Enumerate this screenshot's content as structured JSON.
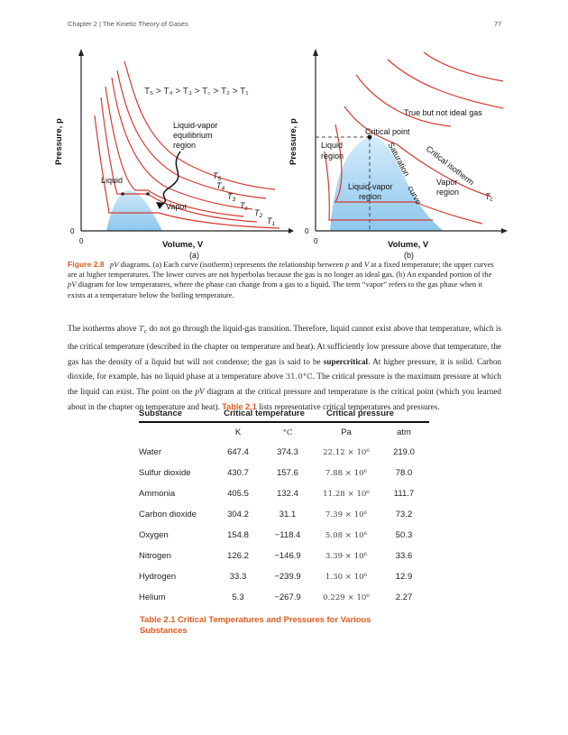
{
  "header": {
    "chapter": "Chapter 2 | The Kinetic Theory of Gases",
    "page": "77"
  },
  "figure": {
    "a": {
      "ordering": "T₅ > T₄ > T₃ > T꜀ > T₂ > T₁",
      "ylabel": "Pressure, p",
      "xlabel": "Volume, V",
      "origin_y": "0",
      "origin_x": "0",
      "region_label": [
        "Liquid-vapor",
        "equilibrium",
        "region"
      ],
      "liquid": "Liquid",
      "vapor": "Vapor",
      "curve_labels": [
        "T5",
        "T4",
        "T3",
        "Tc",
        "T2",
        "T1"
      ],
      "sublabel": "(a)"
    },
    "b": {
      "ylabel": "Pressure, p",
      "xlabel": "Volume, V",
      "origin_y": "0",
      "origin_x": "0",
      "true_not_ideal": "True but not ideal gas",
      "critical_point": "Critical point",
      "liquid_region": [
        "Liquid",
        "region"
      ],
      "saturation_curve": [
        "Saturation",
        "curve"
      ],
      "critical_isotherm": "Critical isotherm",
      "lv_region": [
        "Liquid-vapor",
        "region"
      ],
      "vapor_region": [
        "Vapor",
        "region"
      ],
      "tc": "Tc",
      "sublabel": "(b)"
    }
  },
  "caption": {
    "label": "Figure 2.8",
    "text1": "pV",
    "text2": " diagrams. (a) Each curve (isotherm) represents the relationship between ",
    "p": "p",
    "and": " and ",
    "v": "V",
    "text3": " at a fixed temperature; the upper curves are at higher temperatures. The lower curves are not hyperbolas because the gas is no longer an ideal gas. (b) An expanded portion of the ",
    "pv2": "pV",
    "text4": " diagram for low temperatures, where the phase can change from a gas to a liquid. The term “vapor” refers to the gas phase when it exists at a temperature below the boiling temperature."
  },
  "body": {
    "s1": "The isotherms above ",
    "tc": "T",
    "tc_sub": "c",
    "s2": " do not go through the liquid-gas transition. Therefore, liquid cannot exist above that temperature, which is the critical temperature (described in the chapter on temperature and heat). At sufficiently low pressure above that temperature, the gas has the density of a liquid but will not condense; the gas is said to be ",
    "supercritical": "supercritical",
    "s3": ". At higher pressure, it is solid. Carbon dioxide, for example, has no liquid phase at a temperature above ",
    "temp": "31.0°C",
    "s4": ". The critical pressure is the maximum pressure at which the liquid can exist. The point on the ",
    "pv": "pV",
    "s5": " diagram at the critical pressure and temperature is the critical point (which you learned about in the chapter on temperature and heat). ",
    "table_ref": "Table 2.1",
    "s6": " lists representative critical temperatures and pressures."
  },
  "table": {
    "headers": [
      "Substance",
      "Critical temperature",
      "Critical pressure"
    ],
    "units": [
      "K",
      "°C",
      "Pa",
      "atm"
    ],
    "rows": [
      {
        "name": "Water",
        "k": "647.4",
        "c": "374.3",
        "pa": "22.12 × 10⁶",
        "atm": "219.0"
      },
      {
        "name": "Sulfur dioxide",
        "k": "430.7",
        "c": "157.6",
        "pa": "7.88 × 10⁶",
        "atm": "78.0"
      },
      {
        "name": "Ammonia",
        "k": "405.5",
        "c": "132.4",
        "pa": "11.28 × 10⁶",
        "atm": "111.7"
      },
      {
        "name": "Carbon dioxide",
        "k": "304.2",
        "c": "31.1",
        "pa": "7.39 × 10⁶",
        "atm": "73.2"
      },
      {
        "name": "Oxygen",
        "k": "154.8",
        "c": "−118.4",
        "pa": "5.08 × 10⁶",
        "atm": "50.3"
      },
      {
        "name": "Nitrogen",
        "k": "126.2",
        "c": "−146.9",
        "pa": "3.39 × 10⁶",
        "atm": "33.6"
      },
      {
        "name": "Hydrogen",
        "k": "33.3",
        "c": "−239.9",
        "pa": "1.30 × 10⁶",
        "atm": "12.9"
      },
      {
        "name": "Helium",
        "k": "5.3",
        "c": "−267.9",
        "pa": "0.229 × 10⁶",
        "atm": "2.27"
      }
    ],
    "caption": [
      "Table 2.1 Critical Temperatures and Pressures for Various",
      "Substances"
    ]
  },
  "colors": {
    "accent": "#e05a1f",
    "curve": "#d43a2f",
    "fill": "#a9d6f2"
  }
}
